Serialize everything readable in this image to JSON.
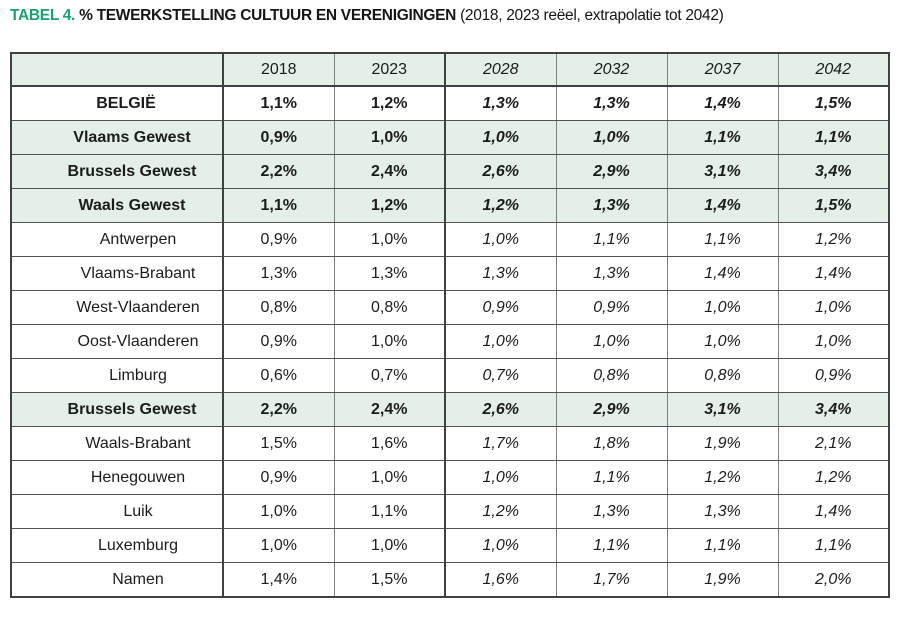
{
  "title": {
    "tag": "TABEL 4.",
    "main": "% TEWERKSTELLING CULTUUR EN VERENIGINGEN",
    "subtitle": "(2018, 2023 reëel, extrapolatie tot 2042)"
  },
  "colors": {
    "accent_green": "#18a36d",
    "row_green": "#e3efe7",
    "border_dark": "#3f4041",
    "border_light": "#7e8180",
    "text": "#1c1c1c"
  },
  "table": {
    "columns": [
      "",
      "2018",
      "2023",
      "2028",
      "2032",
      "2037",
      "2042"
    ],
    "note": "2018 and 2023 are real values; 2028-2042 are extrapolated (italic)",
    "rows": [
      {
        "label": "BELGIË",
        "style": "country",
        "values": [
          "1,1%",
          "1,2%",
          "1,3%",
          "1,3%",
          "1,4%",
          "1,5%"
        ]
      },
      {
        "label": "Vlaams Gewest",
        "style": "region",
        "values": [
          "0,9%",
          "1,0%",
          "1,0%",
          "1,0%",
          "1,1%",
          "1,1%"
        ]
      },
      {
        "label": "Brussels Gewest",
        "style": "region",
        "values": [
          "2,2%",
          "2,4%",
          "2,6%",
          "2,9%",
          "3,1%",
          "3,4%"
        ]
      },
      {
        "label": "Waals Gewest",
        "style": "region",
        "values": [
          "1,1%",
          "1,2%",
          "1,2%",
          "1,3%",
          "1,4%",
          "1,5%"
        ]
      },
      {
        "label": "Antwerpen",
        "style": "province",
        "values": [
          "0,9%",
          "1,0%",
          "1,0%",
          "1,1%",
          "1,1%",
          "1,2%"
        ]
      },
      {
        "label": "Vlaams-Brabant",
        "style": "province",
        "values": [
          "1,3%",
          "1,3%",
          "1,3%",
          "1,3%",
          "1,4%",
          "1,4%"
        ]
      },
      {
        "label": "West-Vlaanderen",
        "style": "province",
        "values": [
          "0,8%",
          "0,8%",
          "0,9%",
          "0,9%",
          "1,0%",
          "1,0%"
        ]
      },
      {
        "label": "Oost-Vlaanderen",
        "style": "province",
        "values": [
          "0,9%",
          "1,0%",
          "1,0%",
          "1,0%",
          "1,0%",
          "1,0%"
        ]
      },
      {
        "label": "Limburg",
        "style": "province",
        "values": [
          "0,6%",
          "0,7%",
          "0,7%",
          "0,8%",
          "0,8%",
          "0,9%"
        ]
      },
      {
        "label": "Brussels Gewest",
        "style": "region",
        "values": [
          "2,2%",
          "2,4%",
          "2,6%",
          "2,9%",
          "3,1%",
          "3,4%"
        ]
      },
      {
        "label": "Waals-Brabant",
        "style": "province",
        "values": [
          "1,5%",
          "1,6%",
          "1,7%",
          "1,8%",
          "1,9%",
          "2,1%"
        ]
      },
      {
        "label": "Henegouwen",
        "style": "province",
        "values": [
          "0,9%",
          "1,0%",
          "1,0%",
          "1,1%",
          "1,2%",
          "1,2%"
        ]
      },
      {
        "label": "Luik",
        "style": "province",
        "values": [
          "1,0%",
          "1,1%",
          "1,2%",
          "1,3%",
          "1,3%",
          "1,4%"
        ]
      },
      {
        "label": "Luxemburg",
        "style": "province",
        "values": [
          "1,0%",
          "1,0%",
          "1,0%",
          "1,1%",
          "1,1%",
          "1,1%"
        ]
      },
      {
        "label": "Namen",
        "style": "province",
        "values": [
          "1,4%",
          "1,5%",
          "1,6%",
          "1,7%",
          "1,9%",
          "2,0%"
        ]
      }
    ]
  }
}
